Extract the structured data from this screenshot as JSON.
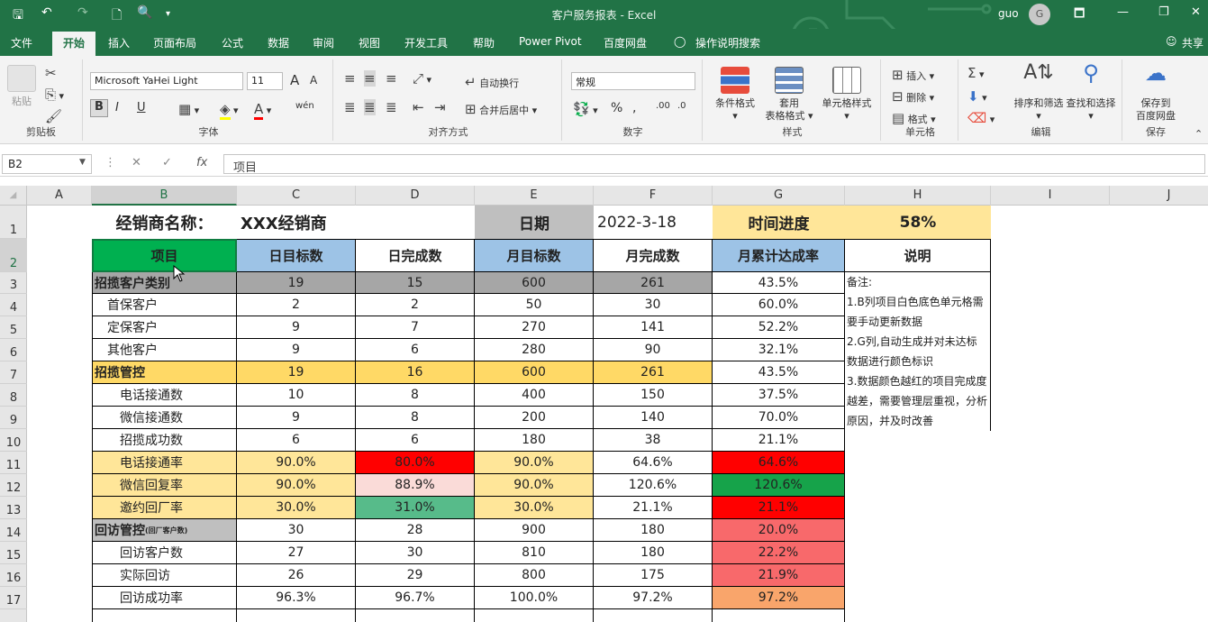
{
  "window": {
    "title": "客户服务报表 - Excel",
    "user": "guo",
    "avatar_initial": "G"
  },
  "quick_access": {
    "save": "🖫",
    "undo": "↶",
    "redo": "↷",
    "new": "🗋",
    "preview": "🔍",
    "more": "▾"
  },
  "window_controls": {
    "ribbon_display": "🗖",
    "minimize": "—",
    "restore": "❐",
    "close": "✕"
  },
  "tabs": [
    "文件",
    "开始",
    "插入",
    "页面布局",
    "公式",
    "数据",
    "审阅",
    "视图",
    "开发工具",
    "帮助",
    "Power Pivot",
    "百度网盘"
  ],
  "tell_me": "操作说明搜索",
  "share": "共享",
  "ribbon": {
    "clipboard": {
      "paste": "粘贴",
      "label": "剪贴板"
    },
    "font": {
      "name": "Microsoft YaHei Light",
      "size": "11",
      "bold": "B",
      "italic": "I",
      "underline": "U",
      "wen": "wén",
      "label": "字体",
      "grow": "A",
      "shrink": "A"
    },
    "alignment": {
      "wrap": "自动换行",
      "merge": "合并后居中",
      "label": "对齐方式"
    },
    "number": {
      "format": "常规",
      "percent": "%",
      "label": "数字"
    },
    "styles": {
      "conditional": "条件格式",
      "table_1": "套用",
      "table_2": "表格格式",
      "cell": "单元格样式",
      "label": "样式"
    },
    "cells": {
      "insert": "插入",
      "delete": "删除",
      "format": "格式",
      "label": "单元格"
    },
    "editing": {
      "sort": "排序和筛选",
      "find": "查找和选择",
      "label": "编辑"
    },
    "save": {
      "btn_1": "保存到",
      "btn_2": "百度网盘",
      "label": "保存"
    }
  },
  "formula_bar": {
    "name_box": "B2",
    "formula": "项目"
  },
  "columns": [
    "A",
    "B",
    "C",
    "D",
    "E",
    "F",
    "G",
    "H",
    "I",
    "J"
  ],
  "rows": [
    "1",
    "2",
    "3",
    "4",
    "5",
    "6",
    "7",
    "8",
    "9",
    "10",
    "11",
    "12",
    "13",
    "14",
    "15",
    "16",
    "17"
  ],
  "sheet": {
    "r1": {
      "dealer_label": "经销商名称：",
      "dealer_value": "XXX经销商",
      "date_label": "日期",
      "date_value": "2022-3-18",
      "progress_label": "时间进度",
      "progress_value": "58%"
    },
    "headers": [
      "项目",
      "日目标数",
      "日完成数",
      "月目标数",
      "月完成数",
      "月累计达成率",
      "说明"
    ],
    "data": [
      {
        "item": "招揽客户类别",
        "c": "19",
        "d": "15",
        "e": "600",
        "f": "261",
        "g": "43.5%"
      },
      {
        "item": "首保客户",
        "c": "2",
        "d": "2",
        "e": "50",
        "f": "30",
        "g": "60.0%"
      },
      {
        "item": "定保客户",
        "c": "9",
        "d": "7",
        "e": "270",
        "f": "141",
        "g": "52.2%"
      },
      {
        "item": "其他客户",
        "c": "9",
        "d": "6",
        "e": "280",
        "f": "90",
        "g": "32.1%"
      },
      {
        "item": "招揽管控",
        "c": "19",
        "d": "16",
        "e": "600",
        "f": "261",
        "g": "43.5%"
      },
      {
        "item": "电话接通数",
        "c": "10",
        "d": "8",
        "e": "400",
        "f": "150",
        "g": "37.5%"
      },
      {
        "item": "微信接通数",
        "c": "9",
        "d": "8",
        "e": "200",
        "f": "140",
        "g": "70.0%"
      },
      {
        "item": "招揽成功数",
        "c": "6",
        "d": "6",
        "e": "180",
        "f": "38",
        "g": "21.1%"
      },
      {
        "item": "电话接通率",
        "c": "90.0%",
        "d": "80.0%",
        "e": "90.0%",
        "f": "64.6%",
        "g": "64.6%"
      },
      {
        "item": "微信回复率",
        "c": "90.0%",
        "d": "88.9%",
        "e": "90.0%",
        "f": "120.6%",
        "g": "120.6%"
      },
      {
        "item": "邀约回厂率",
        "c": "30.0%",
        "d": "31.0%",
        "e": "30.0%",
        "f": "21.1%",
        "g": "21.1%"
      },
      {
        "item": "回访管控",
        "item_sub": "(回厂客户数)",
        "c": "30",
        "d": "28",
        "e": "900",
        "f": "180",
        "g": "20.0%"
      },
      {
        "item": "回访客户数",
        "c": "27",
        "d": "30",
        "e": "810",
        "f": "180",
        "g": "22.2%"
      },
      {
        "item": "实际回访",
        "c": "26",
        "d": "29",
        "e": "800",
        "f": "175",
        "g": "21.9%"
      },
      {
        "item": "回访成功率",
        "c": "96.3%",
        "d": "96.7%",
        "e": "100.0%",
        "f": "97.2%",
        "g": "97.2%"
      }
    ],
    "notes": [
      "备注:",
      "1.B列项目白色底色单元格需要手动更新数据",
      "2.G列,自动生成并对未达标数据进行颜色标识",
      "3.数据颜色越红的项目完成度越差，需要管理层重视，分析原因，并及时改善"
    ]
  },
  "colors": {
    "excel_green": "#217346",
    "header_green": "#00b050",
    "header_blue": "#9dc3e6",
    "gray": "#a6a6a6",
    "gold": "#ffd966",
    "light_gold": "#ffe699",
    "red": "#ff0000",
    "pink": "#fadbd8",
    "green_cell": "#57bb8a",
    "green_dark": "#16a34a",
    "salmon": "#f8696b",
    "orange": "#f9a56b"
  }
}
